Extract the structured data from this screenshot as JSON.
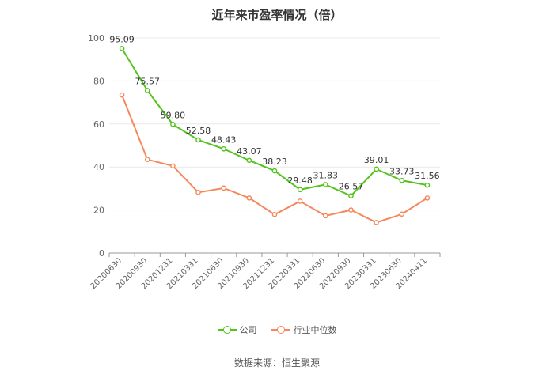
{
  "chart_data": {
    "type": "line",
    "title": "近年来市盈率情况（倍）",
    "categories": [
      "20200630",
      "20200930",
      "20201231",
      "20210331",
      "20210630",
      "20210930",
      "20211231",
      "20220331",
      "20220630",
      "20220930",
      "20230331",
      "20230630",
      "20240411"
    ],
    "series": [
      {
        "name": "公司",
        "color": "#52c41a",
        "values": [
          95.09,
          75.57,
          59.8,
          52.58,
          48.43,
          43.07,
          38.23,
          29.48,
          31.83,
          26.57,
          39.01,
          33.73,
          31.56
        ],
        "labels": [
          "95.09",
          "75.57",
          "59.80",
          "52.58",
          "48.43",
          "43.07",
          "38.23",
          "29.48",
          "31.83",
          "26.57",
          "39.01",
          "33.73",
          "31.56"
        ]
      },
      {
        "name": "行业中位数",
        "color": "#f5875a",
        "values": [
          73.5,
          43.5,
          40.5,
          28.2,
          30.2,
          25.6,
          17.9,
          24.1,
          17.3,
          20.0,
          14.2,
          18.1,
          25.6
        ]
      }
    ],
    "ylim": [
      0,
      100
    ],
    "yticks": [
      "0",
      "20",
      "40",
      "60",
      "80",
      "100"
    ],
    "grid": true,
    "legend_position": "bottom"
  },
  "source": "数据来源：恒生聚源"
}
